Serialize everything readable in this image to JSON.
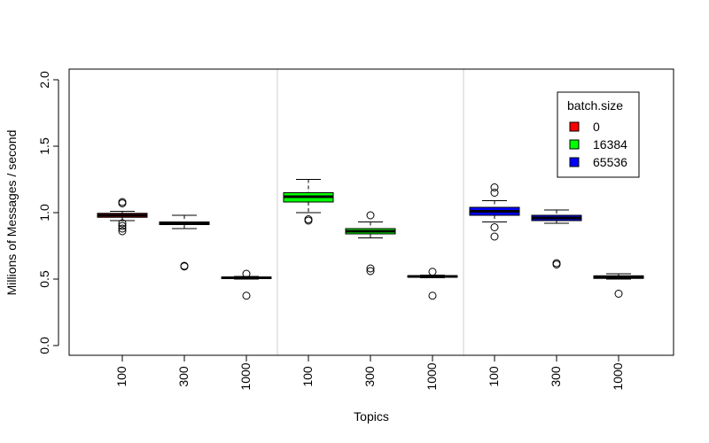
{
  "chart_data": {
    "type": "box",
    "xlabel": "Topics",
    "ylabel": "Millions of Messages / second",
    "ylim": [
      0,
      2.0
    ],
    "yticks": [
      "0.0",
      "0.5",
      "1.0",
      "1.5",
      "2.0"
    ],
    "xtick_labels": [
      "100",
      "300",
      "1000",
      "100",
      "300",
      "1000",
      "100",
      "300",
      "1000"
    ],
    "legend": {
      "title": "batch.size",
      "placement": "top-right",
      "entries": [
        {
          "label": "0",
          "color": "#ff0000"
        },
        {
          "label": "16384",
          "color": "#00ff00"
        },
        {
          "label": "65536",
          "color": "#0000ff"
        }
      ]
    },
    "groups": [
      {
        "batch_size": "0",
        "color": "#ff0000",
        "boxes": [
          {
            "topics": "100",
            "min": 0.94,
            "q1": 0.965,
            "median": 0.98,
            "q3": 0.995,
            "max": 1.01,
            "outliers": [
              1.08,
              1.07,
              0.92,
              0.9,
              0.88,
              0.86
            ]
          },
          {
            "topics": "300",
            "min": 0.88,
            "q1": 0.91,
            "median": 0.92,
            "q3": 0.93,
            "max": 0.98,
            "outliers": [
              0.6,
              0.595
            ]
          },
          {
            "topics": "1000",
            "min": 0.5,
            "q1": 0.505,
            "median": 0.51,
            "q3": 0.515,
            "max": 0.52,
            "outliers": [
              0.54,
              0.375
            ]
          }
        ]
      },
      {
        "batch_size": "16384",
        "color": "#00ff00",
        "boxes": [
          {
            "topics": "100",
            "min": 1.0,
            "q1": 1.08,
            "median": 1.12,
            "q3": 1.15,
            "max": 1.25,
            "outliers": [
              0.95,
              0.94
            ]
          },
          {
            "topics": "300",
            "min": 0.81,
            "q1": 0.84,
            "median": 0.86,
            "q3": 0.88,
            "max": 0.93,
            "outliers": [
              0.98,
              0.58,
              0.56
            ]
          },
          {
            "topics": "1000",
            "min": 0.51,
            "q1": 0.515,
            "median": 0.52,
            "q3": 0.525,
            "max": 0.53,
            "outliers": [
              0.555,
              0.375
            ]
          }
        ]
      },
      {
        "batch_size": "65536",
        "color": "#0000ff",
        "boxes": [
          {
            "topics": "100",
            "min": 0.93,
            "q1": 0.98,
            "median": 1.01,
            "q3": 1.04,
            "max": 1.09,
            "outliers": [
              1.19,
              1.15,
              0.89,
              0.82
            ]
          },
          {
            "topics": "300",
            "min": 0.92,
            "q1": 0.94,
            "median": 0.96,
            "q3": 0.98,
            "max": 1.02,
            "outliers": [
              0.62,
              0.61
            ]
          },
          {
            "topics": "1000",
            "min": 0.5,
            "q1": 0.505,
            "median": 0.515,
            "q3": 0.525,
            "max": 0.54,
            "outliers": [
              0.39
            ]
          }
        ]
      }
    ]
  }
}
